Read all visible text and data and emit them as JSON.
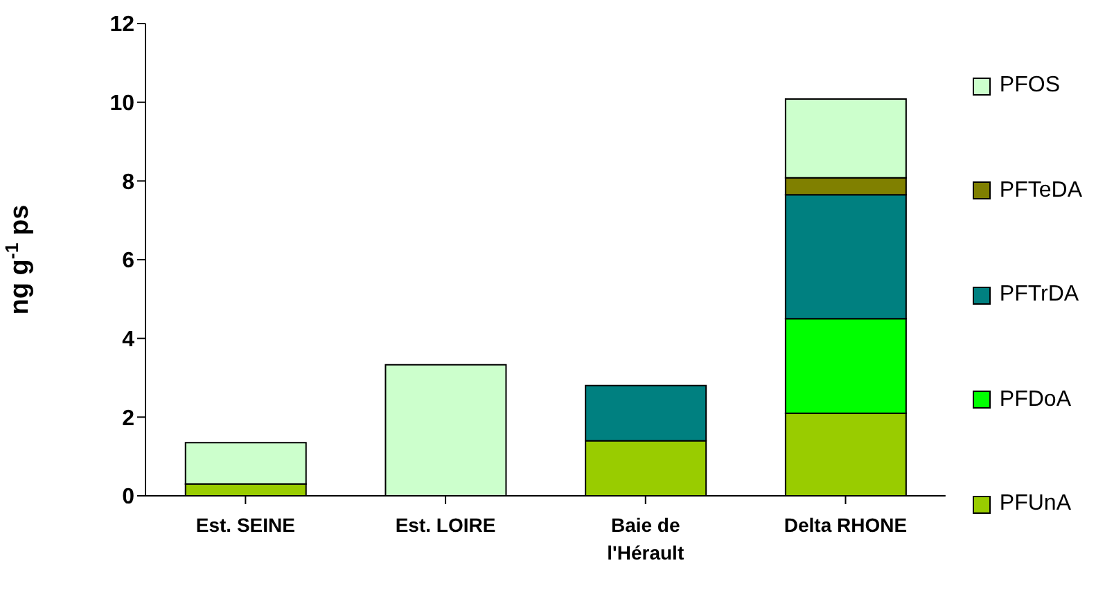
{
  "chart_data": {
    "type": "bar",
    "stacked": true,
    "ylabel": "ng g$^{-1}$ ps",
    "categories": [
      "Est. SEINE",
      "Est. LOIRE",
      "Baie de l'Hérault",
      "Delta RHONE"
    ],
    "series": [
      {
        "name": "PFUnA",
        "color": "#99cc00",
        "values": [
          0.3,
          null,
          1.4,
          2.1
        ]
      },
      {
        "name": "PFDoA",
        "color": "#00ff00",
        "values": [
          null,
          null,
          null,
          2.4
        ]
      },
      {
        "name": "PFTrDA",
        "color": "#008080",
        "values": [
          null,
          null,
          1.4,
          3.15
        ]
      },
      {
        "name": "PFTeDA",
        "color": "#808000",
        "values": [
          null,
          null,
          null,
          0.43
        ]
      },
      {
        "name": "PFOS",
        "color": "#ccffcc",
        "values": [
          1.05,
          3.33,
          null,
          2.0
        ]
      }
    ],
    "ylim": [
      0,
      12
    ],
    "yticks": [
      0,
      2,
      4,
      6,
      8,
      10,
      12
    ],
    "grid": false,
    "legend": "right"
  }
}
